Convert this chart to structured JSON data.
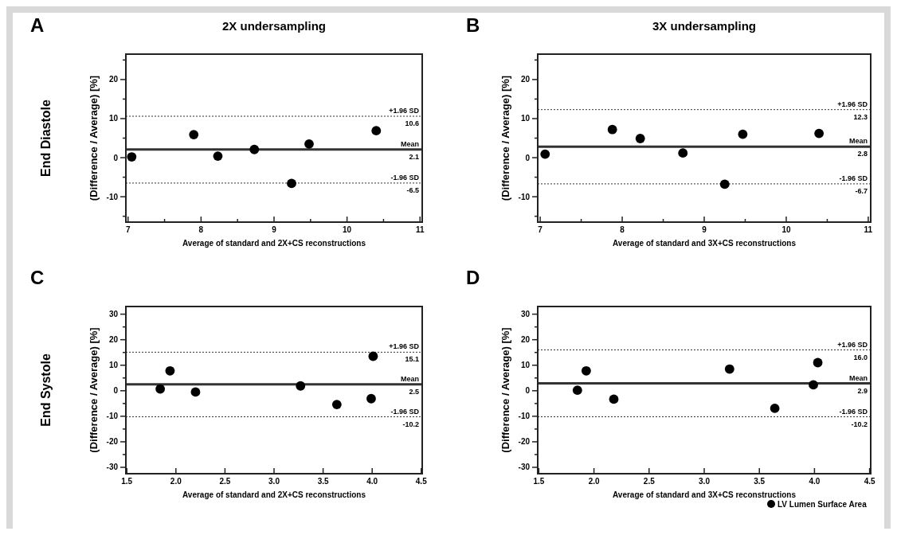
{
  "chart_data": [
    {
      "type": "scatter",
      "title": "2X undersampling",
      "xlabel": "Average of standard and 2X+CS reconstructions",
      "ylabel": "(Difference / Average) [%]",
      "marker": "circle",
      "legend": false,
      "x": [
        7.05,
        7.9,
        8.23,
        8.73,
        9.24,
        9.48,
        10.4
      ],
      "series": [
        {
          "color": "#000000",
          "values": [
            0.2,
            5.9,
            0.4,
            2.1,
            -6.6,
            3.5,
            6.9
          ]
        }
      ],
      "xlim": [
        6.97,
        11.03
      ],
      "xticks": [
        7,
        {
          "value": 7.5,
          "label": null
        },
        8,
        {
          "value": 8.5,
          "label": null
        },
        9,
        {
          "value": 9.5,
          "label": null
        },
        10,
        {
          "value": 10.5,
          "label": null
        },
        11
      ],
      "ylim": [
        -16.5,
        26.5
      ],
      "yticks": [
        {
          "value": -15,
          "label": null
        },
        -10,
        {
          "value": -5,
          "label": null
        },
        0,
        {
          "value": 5,
          "label": null
        },
        10,
        {
          "value": 15,
          "label": null
        },
        20,
        {
          "value": 25,
          "label": null
        }
      ],
      "ref_lines": [
        {
          "axis": "y",
          "value": 10.6,
          "label": "+1.96 SD",
          "line_style": "dotted"
        },
        {
          "axis": "y",
          "value": 2.1,
          "label": "Mean",
          "line_style": "solid"
        },
        {
          "axis": "y",
          "value": -6.5,
          "label": "-1.96 SD",
          "line_style": "dotted"
        }
      ],
      "annotations": [
        "A",
        "End Diastole",
        {
          "text": "10.6",
          "y": 10.6
        },
        {
          "text": "2.1",
          "y": 2.1
        },
        {
          "text": "-6.5",
          "y": -6.5
        }
      ]
    },
    {
      "type": "scatter",
      "title": "3X undersampling",
      "xlabel": "Average of standard and 3X+CS reconstructions",
      "ylabel": "(Difference / Average) [%]",
      "marker": "circle",
      "legend": false,
      "x": [
        7.06,
        7.88,
        8.22,
        8.74,
        9.25,
        9.47,
        10.4
      ],
      "series": [
        {
          "color": "#000000",
          "values": [
            0.9,
            7.2,
            4.9,
            1.2,
            -6.8,
            6.0,
            6.2
          ]
        }
      ],
      "xlim": [
        6.97,
        11.03
      ],
      "xticks": [
        7,
        {
          "value": 7.5,
          "label": null
        },
        8,
        {
          "value": 8.5,
          "label": null
        },
        9,
        {
          "value": 9.5,
          "label": null
        },
        10,
        {
          "value": 10.5,
          "label": null
        },
        11
      ],
      "ylim": [
        -16.5,
        26.5
      ],
      "yticks": [
        {
          "value": -15,
          "label": null
        },
        -10,
        {
          "value": -5,
          "label": null
        },
        0,
        {
          "value": 5,
          "label": null
        },
        10,
        {
          "value": 15,
          "label": null
        },
        20,
        {
          "value": 25,
          "label": null
        }
      ],
      "ref_lines": [
        {
          "axis": "y",
          "value": 12.3,
          "label": "+1.96 SD",
          "line_style": "dotted"
        },
        {
          "axis": "y",
          "value": 2.8,
          "label": "Mean",
          "line_style": "solid"
        },
        {
          "axis": "y",
          "value": -6.7,
          "label": "-1.96 SD",
          "line_style": "dotted"
        }
      ],
      "annotations": [
        "B",
        {
          "text": "12.3",
          "y": 12.3
        },
        {
          "text": "2.8",
          "y": 2.8
        },
        {
          "text": "-6.7",
          "y": -6.7
        }
      ]
    },
    {
      "type": "scatter",
      "xlabel": "Average of standard and 2X+CS reconstructions",
      "ylabel": "(Difference / Average) [%]",
      "marker": "circle",
      "legend": false,
      "x": [
        1.84,
        1.94,
        2.2,
        3.27,
        3.64,
        3.99,
        4.01
      ],
      "series": [
        {
          "color": "#000000",
          "values": [
            0.7,
            7.8,
            -0.5,
            1.9,
            -5.4,
            -3.1,
            13.5
          ]
        }
      ],
      "xlim": [
        1.49,
        4.51
      ],
      "xticks": [
        {
          "value": 1.5,
          "label": "1.5"
        },
        {
          "value": 2,
          "label": "2.0"
        },
        {
          "value": 2.5,
          "label": "2.5"
        },
        {
          "value": 3,
          "label": "3.0"
        },
        {
          "value": 3.5,
          "label": "3.5"
        },
        {
          "value": 4,
          "label": "4.0"
        },
        {
          "value": 4.5,
          "label": "4.5"
        }
      ],
      "ylim": [
        -32.5,
        33
      ],
      "yticks": [
        -30,
        {
          "value": -25,
          "label": null
        },
        -20,
        {
          "value": -15,
          "label": null
        },
        -10,
        {
          "value": -5,
          "label": null
        },
        0,
        {
          "value": 5,
          "label": null
        },
        10,
        {
          "value": 15,
          "label": null
        },
        20,
        {
          "value": 25,
          "label": null
        },
        30
      ],
      "ref_lines": [
        {
          "axis": "y",
          "value": 15.1,
          "label": "+1.96 SD",
          "line_style": "dotted"
        },
        {
          "axis": "y",
          "value": 2.5,
          "label": "Mean",
          "line_style": "solid"
        },
        {
          "axis": "y",
          "value": -10.2,
          "label": "-1.96 SD",
          "line_style": "dotted"
        }
      ],
      "annotations": [
        "C",
        "End Systole",
        {
          "text": "15.1",
          "y": 15.1
        },
        {
          "text": "2.5",
          "y": 2.5
        },
        {
          "text": "-10.2",
          "y": -10.2
        }
      ]
    },
    {
      "type": "scatter",
      "xlabel": "Average of standard and 3X+CS reconstructions",
      "ylabel": "(Difference / Average) [%]",
      "marker": "circle",
      "legend": "bottom right",
      "x": [
        1.85,
        1.93,
        2.18,
        3.23,
        3.64,
        3.99,
        4.03
      ],
      "series": [
        {
          "name": "LV Lumen Surface Area",
          "color": "#000000",
          "values": [
            0.2,
            7.8,
            -3.3,
            8.5,
            -6.9,
            2.3,
            11.0
          ]
        }
      ],
      "xlim": [
        1.49,
        4.51
      ],
      "xticks": [
        {
          "value": 1.5,
          "label": "1.5"
        },
        {
          "value": 2,
          "label": "2.0"
        },
        {
          "value": 2.5,
          "label": "2.5"
        },
        {
          "value": 3,
          "label": "3.0"
        },
        {
          "value": 3.5,
          "label": "3.5"
        },
        {
          "value": 4,
          "label": "4.0"
        },
        {
          "value": 4.5,
          "label": "4.5"
        }
      ],
      "ylim": [
        -32.5,
        33
      ],
      "yticks": [
        -30,
        {
          "value": -25,
          "label": null
        },
        -20,
        {
          "value": -15,
          "label": null
        },
        -10,
        {
          "value": -5,
          "label": null
        },
        0,
        {
          "value": 5,
          "label": null
        },
        10,
        {
          "value": 15,
          "label": null
        },
        20,
        {
          "value": 25,
          "label": null
        },
        30
      ],
      "ref_lines": [
        {
          "axis": "y",
          "value": 16.0,
          "label": "+1.96 SD",
          "line_style": "dotted"
        },
        {
          "axis": "y",
          "value": 2.9,
          "label": "Mean",
          "line_style": "solid"
        },
        {
          "axis": "y",
          "value": -10.2,
          "label": "-1.96 SD",
          "line_style": "dotted"
        }
      ],
      "annotations": [
        "D",
        {
          "text": "16.0",
          "y": 16.0
        },
        {
          "text": "2.9",
          "y": 2.9
        },
        {
          "text": "-10.2",
          "y": -10.2
        }
      ]
    }
  ]
}
